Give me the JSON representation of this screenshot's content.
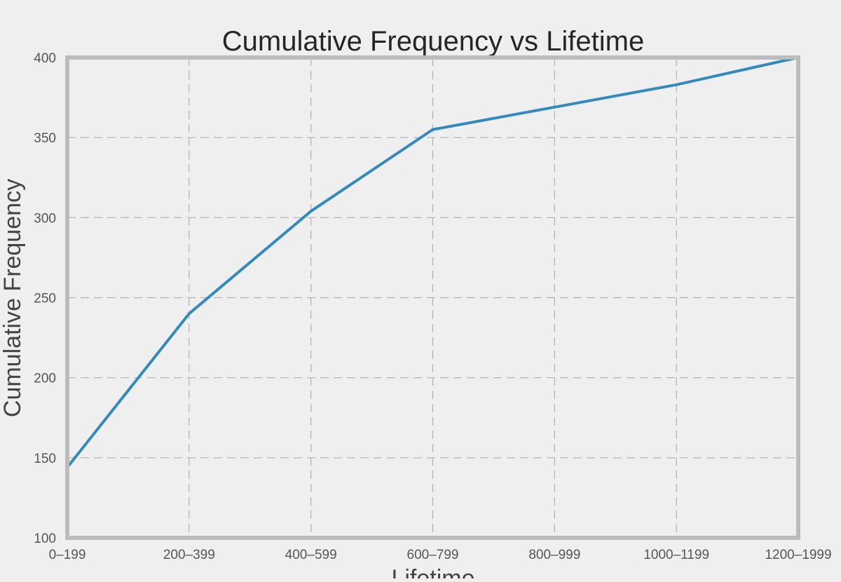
{
  "chart_data": {
    "type": "line",
    "title": "Cumulative Frequency vs Lifetime",
    "xlabel": "Lifetime",
    "ylabel": "Cumulative Frequency",
    "categories": [
      "0–199",
      "200–399",
      "400–599",
      "600–799",
      "800–999",
      "1000–1199",
      "1200–1999"
    ],
    "series": [
      {
        "values": [
          144,
          240,
          304,
          355,
          369,
          383,
          400
        ],
        "color": "#348abd"
      }
    ],
    "ylim": [
      100,
      400
    ],
    "yticks": [
      100,
      150,
      200,
      250,
      300,
      350,
      400
    ],
    "grid": true,
    "legend": "none"
  }
}
